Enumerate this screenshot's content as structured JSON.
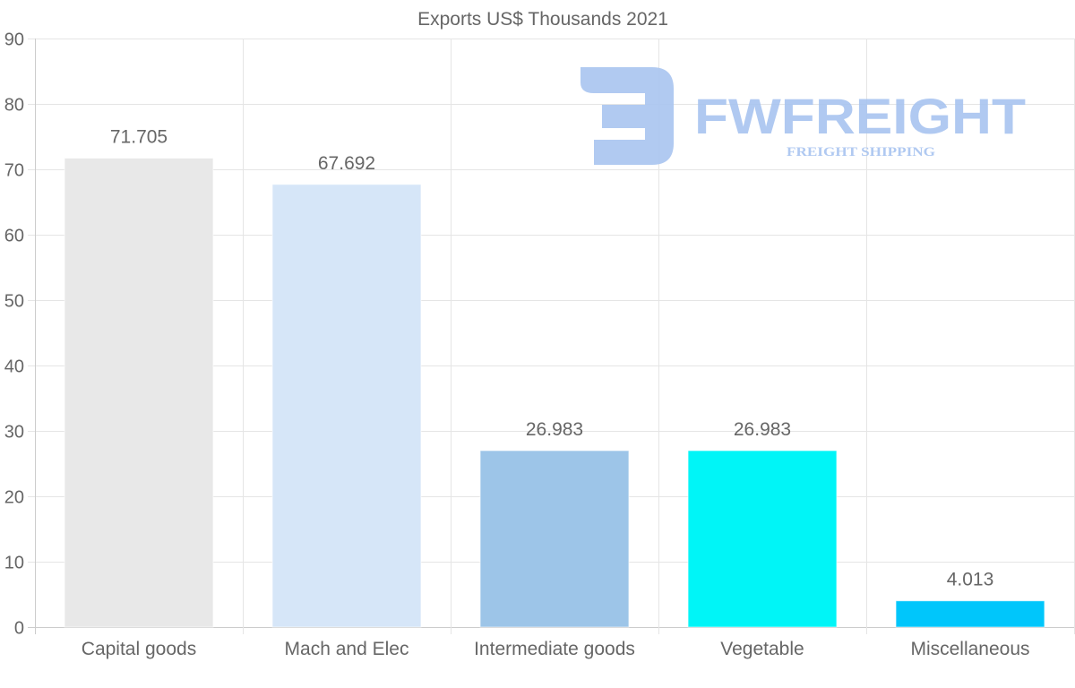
{
  "chart_data": {
    "type": "bar",
    "title": "Exports US$ Thousands 2021",
    "categories": [
      "Capital goods",
      "Mach and Elec",
      "Intermediate goods",
      "Vegetable",
      "Miscellaneous"
    ],
    "values": [
      71.705,
      67.692,
      26.983,
      26.983,
      4.013
    ],
    "value_labels": [
      "71.705",
      "67.692",
      "26.983",
      "26.983",
      "4.013"
    ],
    "colors": [
      "#e8e8e8",
      "#d6e6f8",
      "#9dc5e8",
      "#00f5f7",
      "#00c6fb"
    ],
    "ylim": [
      0,
      90
    ],
    "yticks": [
      "0",
      "10",
      "20",
      "30",
      "40",
      "50",
      "60",
      "70",
      "80",
      "90"
    ],
    "xlabel": "",
    "ylabel": "",
    "grid": true,
    "legend": "none"
  },
  "watermark": {
    "brand": "FWFREIGHT",
    "tagline": "FREIGHT SHIPPING",
    "color": "#a8c4f0"
  }
}
